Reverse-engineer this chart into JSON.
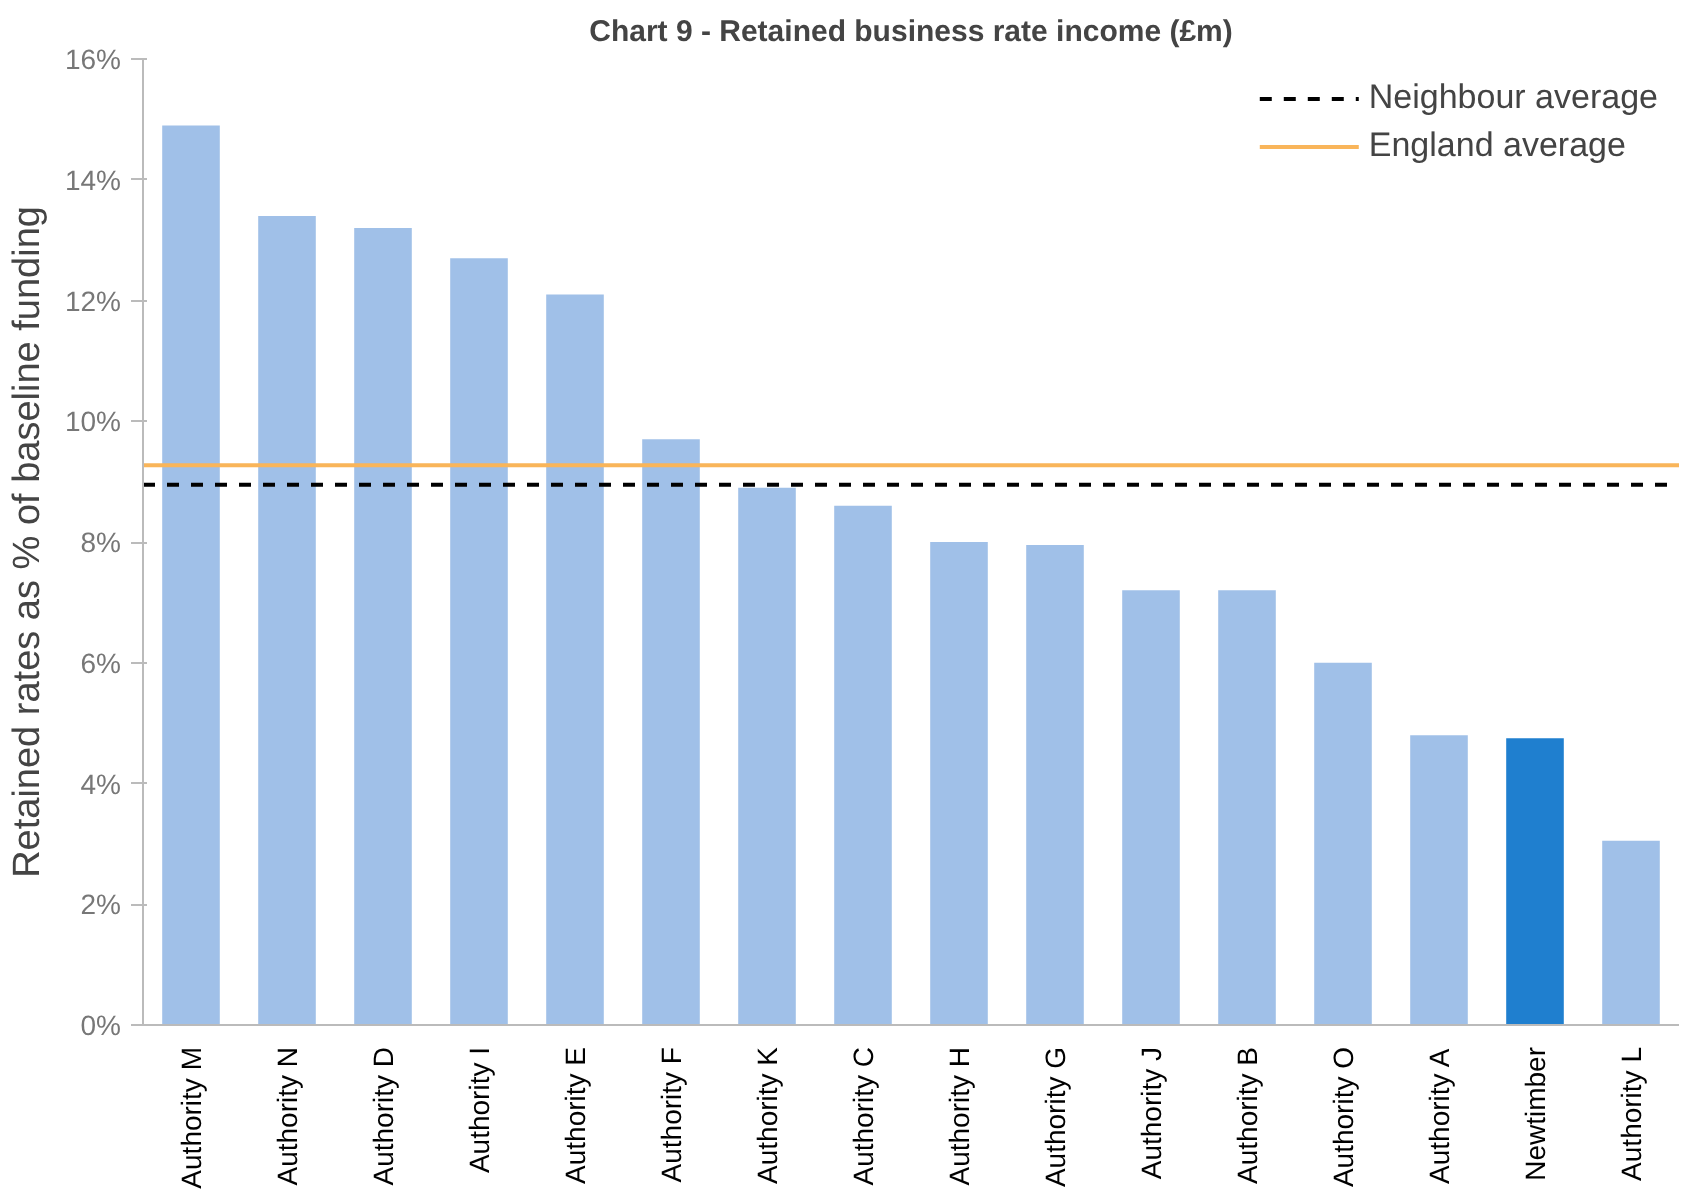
{
  "chart_data": {
    "type": "bar",
    "title": "Chart 9 - Retained business rate income (£m)",
    "ylabel": "Retained rates as % of baseline funding",
    "categories": [
      "Authority M",
      "Authority N",
      "Authority D",
      "Authority I",
      "Authority E",
      "Authority F",
      "Authority K",
      "Authority C",
      "Authority H",
      "Authority G",
      "Authority J",
      "Authority B",
      "Authority O",
      "Authority A",
      "Newtimber",
      "Authority L"
    ],
    "values": [
      14.9,
      13.4,
      13.2,
      12.7,
      12.1,
      9.7,
      8.9,
      8.6,
      8.0,
      7.95,
      7.2,
      7.2,
      6.0,
      4.8,
      4.75,
      3.05
    ],
    "colors": [
      "#a0c0e8",
      "#a0c0e8",
      "#a0c0e8",
      "#a0c0e8",
      "#a0c0e8",
      "#a0c0e8",
      "#a0c0e8",
      "#a0c0e8",
      "#a0c0e8",
      "#a0c0e8",
      "#a0c0e8",
      "#a0c0e8",
      "#a0c0e8",
      "#a0c0e8",
      "#1f7fcf",
      "#a0c0e8"
    ],
    "ylim": [
      0,
      16
    ],
    "yticks": [
      {
        "value": 0,
        "label": "0%"
      },
      {
        "value": 2,
        "label": "2%"
      },
      {
        "value": 4,
        "label": "4%"
      },
      {
        "value": 6,
        "label": "6%"
      },
      {
        "value": 8,
        "label": "8%"
      },
      {
        "value": 10,
        "label": "10%"
      },
      {
        "value": 12,
        "label": "12%"
      },
      {
        "value": 14,
        "label": "14%"
      },
      {
        "value": 16,
        "label": "16%"
      }
    ],
    "ref_lines": [
      {
        "axis": "y",
        "value": 8.95,
        "label": "Neighbour average",
        "color": "#000000",
        "line_style": "dashed"
      },
      {
        "axis": "y",
        "value": 9.27,
        "label": "England average",
        "color": "#f9b55a",
        "line_style": "solid"
      }
    ],
    "legend": "top right",
    "grid": false
  }
}
